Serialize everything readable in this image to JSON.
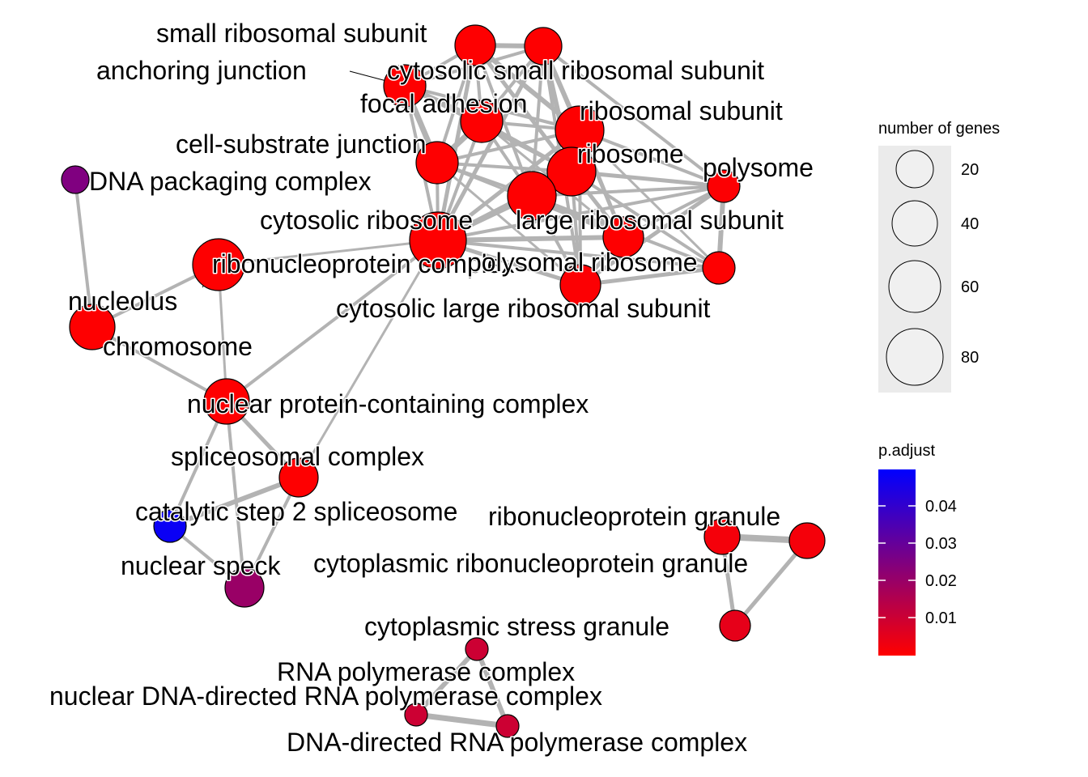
{
  "network": {
    "nodes": [
      {
        "id": "srs",
        "label": "small ribosomal subunit",
        "pval": 0.0001
      },
      {
        "id": "csrs",
        "label": "cytosolic small ribosomal subunit",
        "pval": 0.0001
      },
      {
        "id": "aj",
        "label": "anchoring junction",
        "pval": 0.0001
      },
      {
        "id": "fa",
        "label": "focal adhesion",
        "pval": 0.0001
      },
      {
        "id": "rs",
        "label": "ribosomal subunit",
        "pval": 0.0001
      },
      {
        "id": "csj",
        "label": "cell-substrate junction",
        "pval": 0.0001
      },
      {
        "id": "rib",
        "label": "ribosome",
        "pval": 0.0001
      },
      {
        "id": "poly",
        "label": "polysome",
        "pval": 0.0005
      },
      {
        "id": "dpc",
        "label": "DNA packaging complex",
        "pval": 0.025
      },
      {
        "id": "lrs",
        "label": "large ribosomal subunit",
        "pval": 0.0001
      },
      {
        "id": "cr",
        "label": "cytosolic ribosome",
        "pval": 0.0001
      },
      {
        "id": "rnpc",
        "label": "ribonucleoprotein complex",
        "pval": 0.0001
      },
      {
        "id": "pr",
        "label": "polysomal ribosome",
        "pval": 0.0005
      },
      {
        "id": "clrs",
        "label": "cytosolic large ribosomal subunit",
        "pval": 0.0001
      },
      {
        "id": "ncl",
        "label": "nucleolus",
        "pval": 0.0001
      },
      {
        "id": "chr",
        "label": "chromosome",
        "pval": 0.0001
      },
      {
        "id": "npc",
        "label": "nuclear protein-containing complex",
        "pval": 0.0001
      },
      {
        "id": "spl",
        "label": "spliceosomal complex",
        "pval": 0.0001
      },
      {
        "id": "cs2",
        "label": "catalytic step 2 spliceosome",
        "pval": 0.048
      },
      {
        "id": "rnpg",
        "label": "ribonucleoprotein granule",
        "pval": 0.002
      },
      {
        "id": "crnpg",
        "label": "cytoplasmic ribonucleoprotein granule",
        "pval": 0.002
      },
      {
        "id": "ns",
        "label": "nuclear speck",
        "pval": 0.02
      },
      {
        "id": "csg",
        "label": "cytoplasmic stress granule",
        "pval": 0.005
      },
      {
        "id": "rnap",
        "label": "RNA polymerase complex",
        "pval": 0.01
      },
      {
        "id": "ndrnap",
        "label": "nuclear DNA-directed RNA polymerase complex",
        "pval": 0.01
      },
      {
        "id": "drnap",
        "label": "DNA-directed RNA polymerase complex",
        "pval": 0.01
      }
    ]
  },
  "legend": {
    "size": {
      "title": "number of genes",
      "entries": [
        "20",
        "40",
        "60",
        "80"
      ]
    },
    "color": {
      "title": "p.adjust",
      "ticks": [
        "0.04",
        "0.03",
        "0.02",
        "0.01"
      ],
      "low_color": "#FF0000",
      "high_color": "#0000FF"
    }
  }
}
